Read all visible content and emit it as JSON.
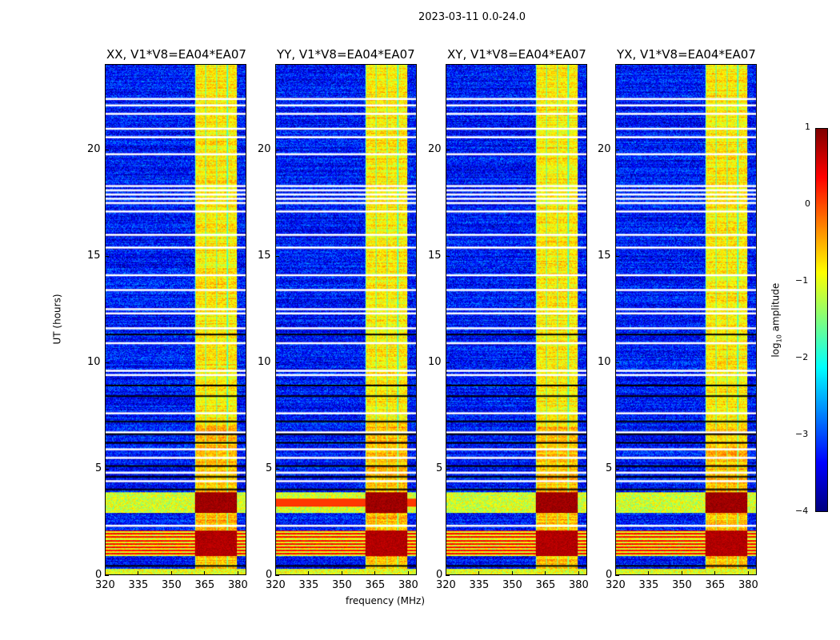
{
  "chart_data": {
    "type": "heatmap",
    "title": "2023-03-11 0.0-24.0",
    "xlabel": "frequency (MHz)",
    "ylabel": "UT (hours)",
    "xlim": [
      320,
      384
    ],
    "ylim": [
      0,
      24
    ],
    "xticks": [
      "320",
      "335",
      "350",
      "365",
      "380"
    ],
    "xtick_values": [
      320,
      335,
      350,
      365,
      380
    ],
    "yticks": [
      "0",
      "5",
      "10",
      "15",
      "20"
    ],
    "ytick_values": [
      0,
      5,
      10,
      15,
      20
    ],
    "panels": [
      {
        "title": "XX, V1*V8=EA04*EA07"
      },
      {
        "title": "YY, V1*V8=EA04*EA07"
      },
      {
        "title": "XY, V1*V8=EA04*EA07"
      },
      {
        "title": "YX, V1*V8=EA04*EA07"
      }
    ],
    "colorbar": {
      "label": "log10 amplitude",
      "label_main": "log",
      "label_sub": "10",
      "label_rest": " amplitude",
      "range": [
        -4,
        1
      ],
      "ticks": [
        "1",
        "0",
        "−1",
        "−2",
        "−3",
        "−4"
      ],
      "tick_values": [
        1,
        0,
        -1,
        -2,
        -3,
        -4
      ],
      "colormap": "jet"
    },
    "band_mhz": [
      360.5,
      380
    ],
    "flagged_ut_white": [
      22.4,
      22.1,
      21.7,
      21.0,
      20.6,
      19.8,
      18.3,
      18.1,
      17.9,
      17.7,
      17.5,
      17.1,
      16.0,
      15.4,
      14.1,
      13.4,
      12.5,
      12.3,
      11.6,
      10.9,
      9.6,
      9.4,
      7.6,
      6.7,
      5.9,
      5.5,
      4.8,
      4.4,
      2.3
    ],
    "flagged_ut_black": [
      11.3,
      8.9,
      8.4,
      7.2,
      6.6,
      6.2,
      5.1,
      4.6,
      4.0,
      0.4
    ]
  }
}
